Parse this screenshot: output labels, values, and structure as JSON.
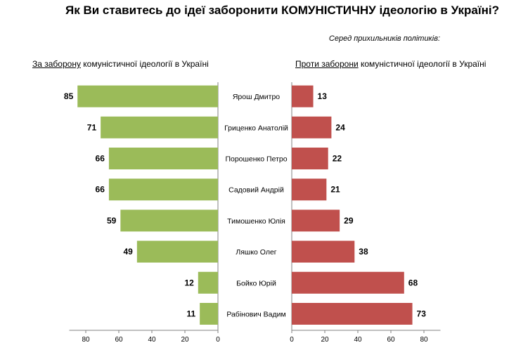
{
  "title": "Як Ви ставитесь до ідеї заборонити КОМУНІСТИЧНУ ідеологію в Україні?",
  "subtitle": "Серед прихильників політиків:",
  "left_label": {
    "underlined": "За заборону",
    "rest": " комуністичної ідеології в Україні"
  },
  "right_label": {
    "underlined": "Проти заборони",
    "rest": " комуністичної ідеології в Україні"
  },
  "colors": {
    "for": "#9bbb59",
    "against": "#c0504d"
  },
  "chart_data": [
    {
      "type": "bar",
      "orientation": "horizontal-reversed",
      "categories": [
        "Ярош Дмитро",
        "Гриценко Анатолій",
        "Порошенко Петро",
        "Садовий Андрій",
        "Тимошенко Юлія",
        "Ляшко Олег",
        "Бойко Юрій",
        "Рабінович Вадим"
      ],
      "values": [
        85,
        71,
        66,
        66,
        59,
        49,
        12,
        11
      ],
      "xlim": [
        90,
        0
      ],
      "ticks": [
        80,
        60,
        40,
        20,
        0
      ]
    },
    {
      "type": "bar",
      "orientation": "horizontal",
      "categories": [
        "Ярош Дмитро",
        "Гриценко Анатолій",
        "Порошенко Петро",
        "Садовий Андрій",
        "Тимошенко Юлія",
        "Ляшко Олег",
        "Бойко Юрій",
        "Рабінович Вадим"
      ],
      "values": [
        13,
        24,
        22,
        21,
        29,
        38,
        68,
        73
      ],
      "xlim": [
        0,
        90
      ],
      "ticks": [
        0,
        20,
        40,
        60,
        80
      ]
    }
  ]
}
